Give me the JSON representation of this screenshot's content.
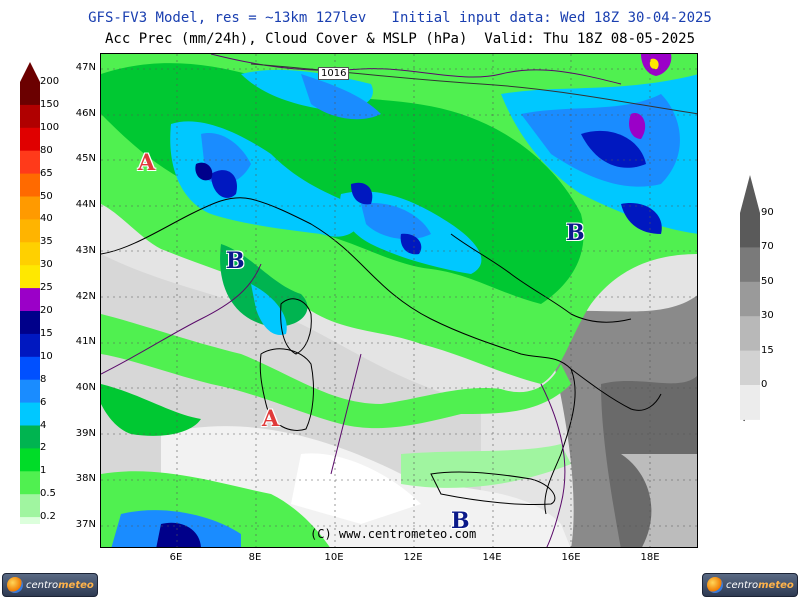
{
  "header": {
    "line1": "GFS-FV3 Model, res = ~13km 127lev   Initial input data: Wed 18Z 30-04-2025",
    "line2": "Acc Prec (mm/24h), Cloud Cover & MSLP (hPa)  Valid: Thu 18Z 08-05-2025"
  },
  "map": {
    "lat_labels": [
      "47N",
      "46N",
      "45N",
      "44N",
      "43N",
      "42N",
      "41N",
      "40N",
      "39N",
      "38N",
      "37N"
    ],
    "lon_labels": [
      "6E",
      "8E",
      "10E",
      "12E",
      "14E",
      "16E",
      "18E"
    ],
    "isobar_label": "1016",
    "pressure_centers": [
      {
        "label": "A",
        "type": "high"
      },
      {
        "label": "B",
        "type": "low"
      },
      {
        "label": "B",
        "type": "low"
      },
      {
        "label": "A",
        "type": "high"
      },
      {
        "label": "B",
        "type": "low"
      }
    ],
    "copyright": "(C) www.centrometeo.com"
  },
  "precip_legend": {
    "labels": [
      "200",
      "150",
      "100",
      "80",
      "65",
      "50",
      "40",
      "35",
      "30",
      "25",
      "20",
      "15",
      "10",
      "8",
      "6",
      "4",
      "2",
      "1",
      "0.5",
      "0.2"
    ],
    "colors": [
      "#6b0000",
      "#b00000",
      "#e00000",
      "#ff3a1a",
      "#ff6a00",
      "#ff9a00",
      "#ffb400",
      "#ffd000",
      "#ffe800",
      "#9b00c8",
      "#00008a",
      "#0018c0",
      "#0050ff",
      "#1a8cff",
      "#00c8ff",
      "#00b450",
      "#00dc28",
      "#50f050",
      "#a0f5a0",
      "#dcffdc"
    ]
  },
  "cloud_legend": {
    "labels": [
      "90",
      "70",
      "50",
      "30",
      "15",
      "0"
    ],
    "colors": [
      "#5a5a5a",
      "#7a7a7a",
      "#9a9a9a",
      "#b8b8b8",
      "#d2d2d2",
      "#ececec"
    ]
  },
  "logos": [
    {
      "brand_a": "centro",
      "brand_b": "meteo"
    },
    {
      "brand_a": "centro",
      "brand_b": "meteo"
    }
  ]
}
